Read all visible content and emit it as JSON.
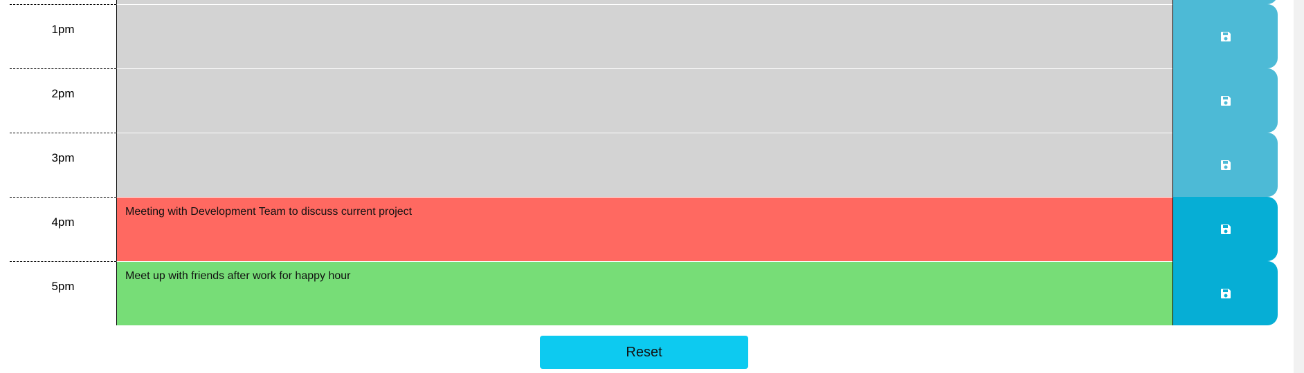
{
  "colors": {
    "past": "#d3d3d3",
    "present": "#ff6961",
    "future": "#77dd77",
    "save_past": "#4dbad6",
    "save_active": "#06aed5",
    "reset": "#0dcaf0"
  },
  "rows": [
    {
      "hour": "",
      "text": "",
      "state": "past"
    },
    {
      "hour": "1pm",
      "text": "",
      "state": "past"
    },
    {
      "hour": "2pm",
      "text": "",
      "state": "past"
    },
    {
      "hour": "3pm",
      "text": "",
      "state": "past"
    },
    {
      "hour": "4pm",
      "text": "Meeting with Development Team to discuss current project",
      "state": "present"
    },
    {
      "hour": "5pm",
      "text": "Meet up with friends after work for happy hour",
      "state": "future"
    }
  ],
  "save_icon": "floppy-disk-icon",
  "reset_label": "Reset"
}
